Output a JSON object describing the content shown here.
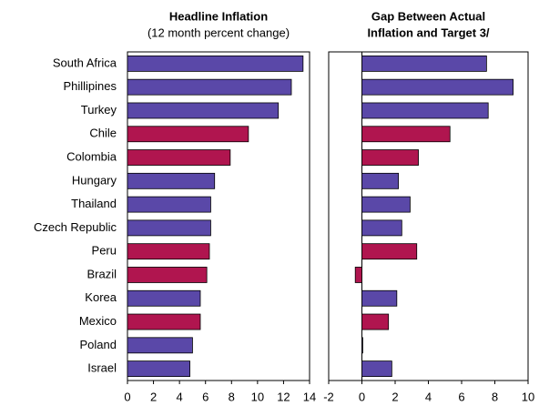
{
  "chart_data": [
    {
      "type": "bar",
      "orientation": "horizontal",
      "title": "Headline Inflation",
      "subtitle": "(12 month percent change)",
      "categories": [
        "South Africa",
        "Phillipines",
        "Turkey",
        "Chile",
        "Colombia",
        "Hungary",
        "Thailand",
        "Czech Republic",
        "Peru",
        "Brazil",
        "Korea",
        "Mexico",
        "Poland",
        "Israel"
      ],
      "values": [
        13.5,
        12.6,
        11.6,
        9.3,
        7.9,
        6.7,
        6.4,
        6.4,
        6.3,
        6.1,
        5.6,
        5.6,
        5.0,
        4.8
      ],
      "colors": [
        "#5a48a8",
        "#5a48a8",
        "#5a48a8",
        "#b0154f",
        "#b0154f",
        "#5a48a8",
        "#5a48a8",
        "#5a48a8",
        "#b0154f",
        "#b0154f",
        "#5a48a8",
        "#b0154f",
        "#5a48a8",
        "#5a48a8"
      ],
      "xlim": [
        0,
        14
      ],
      "xticks": [
        0,
        2,
        4,
        6,
        8,
        10,
        12,
        14
      ]
    },
    {
      "type": "bar",
      "orientation": "horizontal",
      "title": [
        "Gap Between Actual",
        "Inflation and Target 3/"
      ],
      "values": [
        7.5,
        9.1,
        7.6,
        5.3,
        3.4,
        2.2,
        2.9,
        2.4,
        3.3,
        -0.4,
        2.1,
        1.6,
        0.05,
        1.8
      ],
      "colors": [
        "#5a48a8",
        "#5a48a8",
        "#5a48a8",
        "#b0154f",
        "#b0154f",
        "#5a48a8",
        "#5a48a8",
        "#5a48a8",
        "#b0154f",
        "#b0154f",
        "#5a48a8",
        "#b0154f",
        "#5a48a8",
        "#5a48a8"
      ],
      "xlim": [
        -2,
        10
      ],
      "xticks": [
        -2,
        0,
        2,
        4,
        6,
        8,
        10
      ],
      "zero_line": true
    }
  ]
}
